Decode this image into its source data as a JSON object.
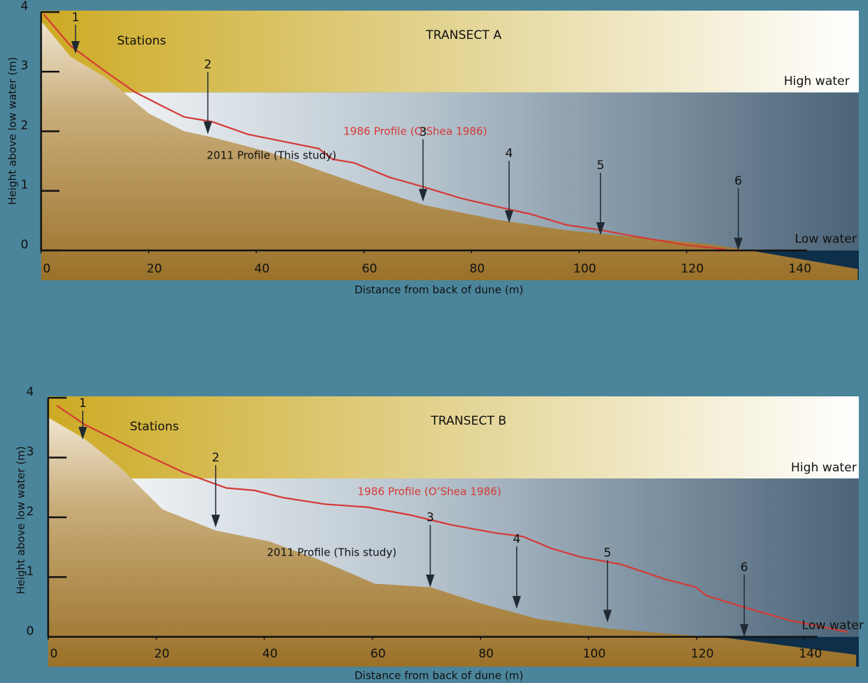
{
  "chart_data": [
    {
      "type": "line",
      "title": "TRANSECT A",
      "xlabel": "Distance from back of dune (m)",
      "ylabel": "Height above low water (m)",
      "xlim": [
        0,
        152
      ],
      "ylim": [
        -0.5,
        4
      ],
      "xticks": [
        0,
        20,
        40,
        60,
        80,
        100,
        120,
        140
      ],
      "yticks": [
        0,
        1,
        2,
        3,
        4
      ],
      "stations_label": "Stations",
      "stations": {
        "labels": [
          "1",
          "2",
          "3",
          "4",
          "5",
          "6"
        ],
        "x": [
          6.4,
          31,
          71,
          87,
          104,
          129.6
        ],
        "y": [
          3.3,
          1.95,
          0.82,
          0.46,
          0.26,
          0
        ]
      },
      "high_water": {
        "label": "High water",
        "value": 2.65
      },
      "low_water": {
        "label": "Low water",
        "value": 0
      },
      "series": [
        {
          "name": "1986 Profile (O’Shea 1986)",
          "color": "#d43a36",
          "x": [
            0.5,
            5.5,
            12,
            17.4,
            22.6,
            26.6,
            31.8,
            38.4,
            45,
            51.6,
            54.2,
            58.2,
            64.7,
            71.3,
            77.9,
            84.5,
            91,
            97.6,
            104.2,
            110.8,
            120,
            127.2
          ],
          "values": [
            3.96,
            3.43,
            3.0,
            2.66,
            2.42,
            2.24,
            2.16,
            1.95,
            1.83,
            1.71,
            1.53,
            1.47,
            1.23,
            1.06,
            0.88,
            0.74,
            0.61,
            0.43,
            0.34,
            0.23,
            0.09,
            0.02
          ]
        },
        {
          "name": "2011 Profile (This study)",
          "color": "#a57d38",
          "area": true,
          "x": [
            0,
            5.5,
            12,
            20,
            26.6,
            31.8,
            42.4,
            51.6,
            59.5,
            71.3,
            84.5,
            97.6,
            110.8,
            123.9,
            130.5,
            151.8
          ],
          "values": [
            3.85,
            3.25,
            2.9,
            2.3,
            2.0,
            1.9,
            1.65,
            1.35,
            1.1,
            0.76,
            0.52,
            0.34,
            0.22,
            0.11,
            0.02,
            -0.31
          ]
        }
      ]
    },
    {
      "type": "line",
      "title": "TRANSECT B",
      "xlabel": "Distance from back of dune (m)",
      "ylabel": "Height above low water (m)",
      "xlim": [
        0,
        150
      ],
      "ylim": [
        -0.5,
        4
      ],
      "xticks": [
        0,
        20,
        40,
        60,
        80,
        100,
        120,
        140
      ],
      "yticks": [
        0,
        1,
        2,
        3,
        4
      ],
      "stations_label": "Stations",
      "stations": {
        "labels": [
          "1",
          "2",
          "3",
          "4",
          "5",
          "6"
        ],
        "x": [
          6.4,
          31,
          70.7,
          86.7,
          103.5,
          128.8
        ],
        "y": [
          3.3,
          1.83,
          0.83,
          0.47,
          0.24,
          0
        ]
      },
      "high_water": {
        "label": "High water",
        "value": 2.65
      },
      "low_water": {
        "label": "Low water",
        "value": 0
      },
      "series": [
        {
          "name": "1986 Profile (O’Shea 1986)",
          "color": "#d43a36",
          "x": [
            1.6,
            6.8,
            17.3,
            25.1,
            33,
            38.2,
            43.4,
            51.2,
            59,
            66.9,
            74.8,
            82.6,
            87.8,
            93.1,
            98.3,
            106.1,
            114,
            119.9,
            121.8,
            129.7,
            137.5,
            148
          ],
          "values": [
            3.87,
            3.55,
            3.08,
            2.75,
            2.49,
            2.45,
            2.33,
            2.22,
            2.17,
            2.04,
            1.87,
            1.74,
            1.68,
            1.48,
            1.34,
            1.21,
            0.97,
            0.83,
            0.69,
            0.47,
            0.27,
            0.08
          ]
        },
        {
          "name": "2011 Profile (This study)",
          "color": "#a57d38",
          "area": true,
          "x": [
            0,
            6.8,
            13.3,
            21.2,
            31,
            40.8,
            49.9,
            60.4,
            70.8,
            80,
            90.5,
            103.5,
            116.6,
            125.8,
            149.5
          ],
          "values": [
            3.67,
            3.31,
            2.84,
            2.13,
            1.78,
            1.6,
            1.3,
            0.89,
            0.83,
            0.56,
            0.3,
            0.14,
            0.04,
            -0.02,
            -0.3
          ]
        }
      ]
    }
  ]
}
